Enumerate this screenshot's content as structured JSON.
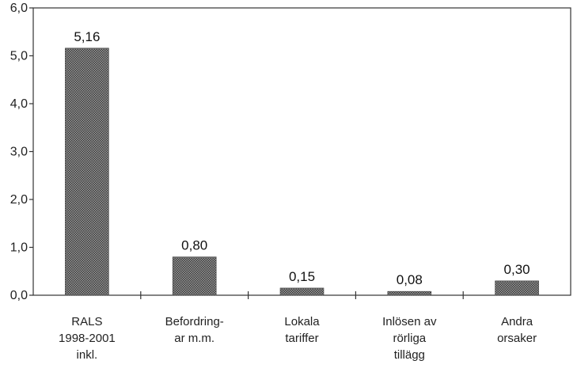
{
  "chart_data": {
    "type": "bar",
    "categories": [
      [
        "RALS",
        "1998-2001",
        "inkl."
      ],
      [
        "Befordring-",
        "ar m.m."
      ],
      [
        "Lokala",
        "tariffer"
      ],
      [
        "Inlösen av",
        "rörliga",
        "tillägg"
      ],
      [
        "Andra",
        "orsaker"
      ]
    ],
    "values": [
      5.16,
      0.8,
      0.15,
      0.08,
      0.3
    ],
    "value_labels": [
      "5,16",
      "0,80",
      "0,15",
      "0,08",
      "0,30"
    ],
    "y_ticks": [
      0,
      1,
      2,
      3,
      4,
      5,
      6
    ],
    "y_tick_labels": [
      "0,0",
      "1,0",
      "2,0",
      "3,0",
      "4,0",
      "5,0",
      "6,0"
    ],
    "ylim": [
      0,
      6
    ],
    "title": "",
    "xlabel": "",
    "ylabel": "",
    "grid": false,
    "bar_pattern": "crosshatch-dark"
  }
}
